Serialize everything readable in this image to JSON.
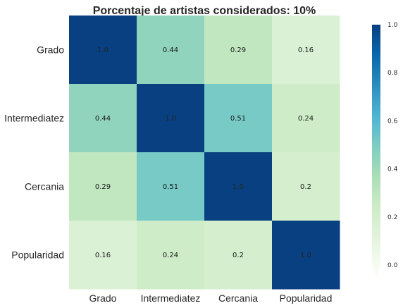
{
  "chart_data": {
    "type": "heatmap",
    "title": "Porcentaje de artistas considerados: 10%",
    "xlabel": "",
    "ylabel": "",
    "row_labels": [
      "Grado",
      "Intermediatez",
      "Cercania",
      "Popularidad"
    ],
    "col_labels": [
      "Grado",
      "Intermediatez",
      "Cercania",
      "Popularidad"
    ],
    "values": [
      [
        1.0,
        0.44,
        0.29,
        0.16
      ],
      [
        0.44,
        1.0,
        0.51,
        0.24
      ],
      [
        0.29,
        0.51,
        1.0,
        0.2
      ],
      [
        0.16,
        0.24,
        0.2,
        1.0
      ]
    ],
    "annotations": [
      [
        "1.0",
        "0.44",
        "0.29",
        "0.16"
      ],
      [
        "0.44",
        "1.0",
        "0.51",
        "0.24"
      ],
      [
        "0.29",
        "0.51",
        "1.0",
        "0.2"
      ],
      [
        "0.16",
        "0.24",
        "0.2",
        "1.0"
      ]
    ],
    "vmin": 0.0,
    "vmax": 1.0,
    "colormap": "GnBu",
    "colorbar": {
      "ticks": [
        0.0,
        0.2,
        0.4,
        0.6,
        0.8,
        1.0
      ],
      "tick_labels": [
        "0.0",
        "0.2",
        "0.4",
        "0.6",
        "0.8",
        "1.0"
      ],
      "placement": "right"
    },
    "grid": false
  }
}
